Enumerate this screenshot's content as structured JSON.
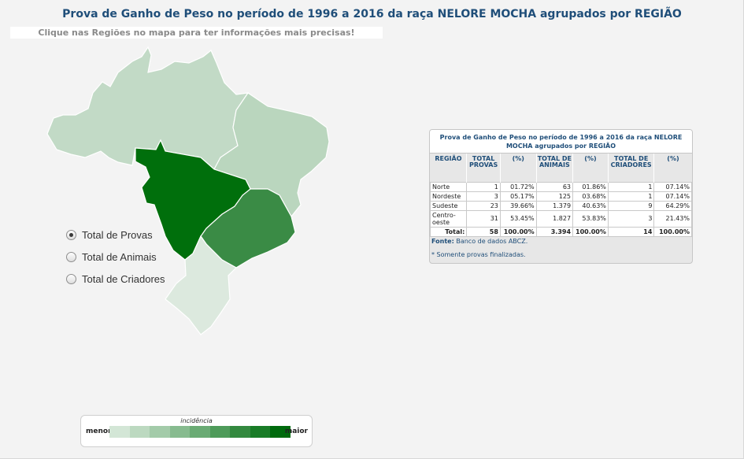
{
  "title": "Prova de Ganho de Peso no período de 1996 a 2016 da raça NELORE MOCHA agrupados por REGIÃO",
  "hint": "Clique nas Regiões no mapa para ter informações mais precisas!",
  "map": {
    "regions": [
      {
        "name": "Norte",
        "color": "#c2dac6"
      },
      {
        "name": "Nordeste",
        "color": "#bad6be"
      },
      {
        "name": "Sudeste",
        "color": "#3a8b45"
      },
      {
        "name": "Centro-oeste",
        "color": "#006f0c"
      },
      {
        "name": "Sul",
        "color": "#dce9de"
      }
    ]
  },
  "radio_options": [
    {
      "label": "Total de Provas",
      "checked": true
    },
    {
      "label": "Total de Animais",
      "checked": false
    },
    {
      "label": "Total de Criadores",
      "checked": false
    }
  ],
  "legend": {
    "caption": "incidência",
    "min_label": "menor",
    "max_label": "maior",
    "colors": [
      "#d3e6d6",
      "#bcd9c0",
      "#a3cba9",
      "#87bb8f",
      "#6aab74",
      "#4e9b5a",
      "#33893f",
      "#197c27",
      "#006a0d"
    ]
  },
  "table": {
    "title": "Prova de Ganho de Peso no período de 1996 a 2016 da raça NELORE MOCHA agrupados por REGIÃO",
    "headers": [
      "REGIÃO",
      "TOTAL PROVAS",
      "(%)",
      "TOTAL DE ANIMAIS",
      "(%)",
      "TOTAL DE CRIADORES",
      "(%)"
    ],
    "rows": [
      [
        "Norte",
        "1",
        "01.72%",
        "63",
        "01.86%",
        "1",
        "07.14%"
      ],
      [
        "Nordeste",
        "3",
        "05.17%",
        "125",
        "03.68%",
        "1",
        "07.14%"
      ],
      [
        "Sudeste",
        "23",
        "39.66%",
        "1.379",
        "40.63%",
        "9",
        "64.29%"
      ],
      [
        "Centro-oeste",
        "31",
        "53.45%",
        "1.827",
        "53.83%",
        "3",
        "21.43%"
      ]
    ],
    "total": [
      "Total:",
      "58",
      "100.00%",
      "3.394",
      "100.00%",
      "14",
      "100.00%"
    ],
    "source_label": "Fonte:",
    "source_text": "Banco de dados ABCZ.",
    "note": "* Somente provas finalizadas."
  }
}
